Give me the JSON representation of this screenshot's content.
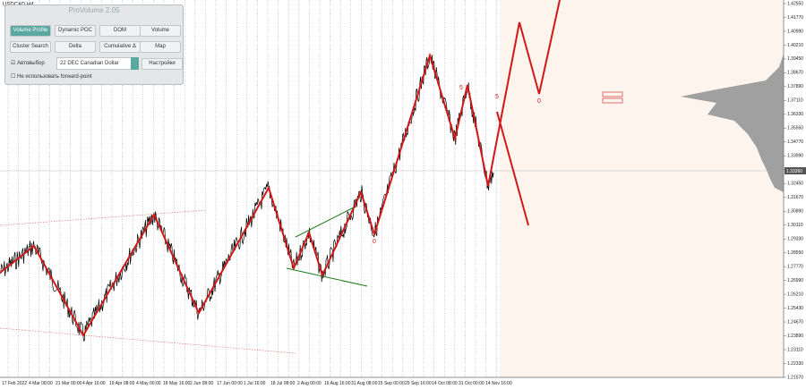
{
  "symbol": "USDCAD,H4",
  "panel": {
    "title": "ProVolume 2.05",
    "buttons": [
      "Volume Profile",
      "Dynamic POC",
      "DOM",
      "Volume",
      "Cluster Search",
      "Delta",
      "Cumulative Δ",
      "Map"
    ],
    "auto_select": "Автовыбор",
    "contract": "22 DEC Canadian Dollar",
    "settings": "Настройки",
    "no_forward": "Не использовать forward-point"
  },
  "price_axis": [
    "1.42550",
    "1.41770",
    "1.40990",
    "1.40210",
    "1.39450",
    "1.38670",
    "1.37890",
    "1.37110",
    "1.36330",
    "1.35550",
    "1.34770",
    "1.33990",
    "1.33210",
    "1.32450",
    "1.31670",
    "1.30890",
    "1.30110",
    "1.29330",
    "1.28550",
    "1.27770",
    "1.26990",
    "1.26210",
    "1.25430",
    "1.24670",
    "1.23890",
    "1.23110",
    "1.22330",
    "1.21570"
  ],
  "current_price": "1.33260",
  "time_axis": [
    "17 Feb 2022",
    "4 Mar 08:00",
    "21 Mar 00:00",
    "4 Apr 16:00",
    "19 Apr 08:00",
    "4 May 00:00",
    "18 May 16:00",
    "2 Jun 08:00",
    "17 Jun 00:00",
    "1 Jul 16:00",
    "18 Jul 08:00",
    "2 Aug 00:00",
    "16 Aug 16:00",
    "31 Aug 08:00",
    "15 Sep 00:00",
    "29 Sep 16:00",
    "14 Oct 08:00",
    "31 Oct 00:00",
    "14 Nov 16:00"
  ],
  "wave_labels": [
    "0",
    "0",
    "5",
    "5"
  ]
}
